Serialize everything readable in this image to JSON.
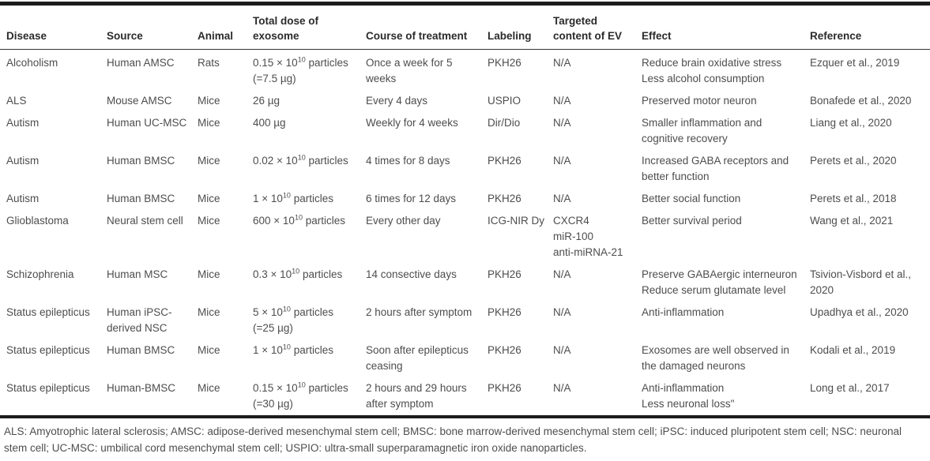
{
  "table": {
    "columns": [
      "Disease",
      "Source",
      "Animal",
      "Total dose of exosome",
      "Course of treatment",
      "Labeling",
      "Targeted content of EV",
      "Effect",
      "Reference"
    ],
    "rows": [
      {
        "disease": "Alcoholism",
        "source": "Human AMSC",
        "animal": "Rats",
        "dose": "0.15 × 10^{10} particles\n(=7.5 µg)",
        "course": "Once a week for 5 weeks",
        "labeling": "PKH26",
        "targeted": "N/A",
        "effect": "Reduce brain oxidative stress\nLess alcohol consumption",
        "reference": "Ezquer et al., 2019"
      },
      {
        "disease": "ALS",
        "source": "Mouse AMSC",
        "animal": "Mice",
        "dose": "26 µg",
        "course": "Every 4 days",
        "labeling": "USPIO",
        "targeted": "N/A",
        "effect": "Preserved motor neuron",
        "reference": "Bonafede et al., 2020"
      },
      {
        "disease": "Autism",
        "source": "Human UC-MSC",
        "animal": "Mice",
        "dose": "400 µg",
        "course": "Weekly for 4 weeks",
        "labeling": "Dir/Dio",
        "targeted": "N/A",
        "effect": "Smaller inflammation and cognitive recovery",
        "reference": "Liang et al., 2020"
      },
      {
        "disease": "Autism",
        "source": "Human BMSC",
        "animal": "Mice",
        "dose": "0.02 × 10^{10} particles",
        "course": "4 times for 8 days",
        "labeling": "PKH26",
        "targeted": "N/A",
        "effect": "Increased GABA receptors and better function",
        "reference": "Perets et al., 2020"
      },
      {
        "disease": "Autism",
        "source": "Human BMSC",
        "animal": "Mice",
        "dose": "1 × 10^{10} particles",
        "course": "6 times for 12 days",
        "labeling": "PKH26",
        "targeted": "N/A",
        "effect": "Better social function",
        "reference": "Perets et al., 2018"
      },
      {
        "disease": "Glioblastoma",
        "source": "Neural stem cell",
        "animal": "Mice",
        "dose": "600 × 10^{10} particles",
        "course": "Every other day",
        "labeling": "ICG-NIR Dy",
        "targeted": "CXCR4\nmiR-100\nanti-miRNA-21",
        "effect": "Better survival period",
        "reference": "Wang et al., 2021"
      },
      {
        "disease": "Schizophrenia",
        "source": "Human MSC",
        "animal": "Mice",
        "dose": "0.3 × 10^{10} particles",
        "course": "14 consective days",
        "labeling": "PKH26",
        "targeted": "N/A",
        "effect": "Preserve GABAergic interneuron\nReduce serum glutamate level",
        "reference": "Tsivion-Visbord et al., 2020"
      },
      {
        "disease": "Status epilepticus",
        "source": "Human iPSC-derived NSC",
        "animal": "Mice",
        "dose": "5 × 10^{10} particles\n(=25 µg)",
        "course": "2 hours after symptom",
        "labeling": "PKH26",
        "targeted": "N/A",
        "effect": "Anti-inflammation",
        "reference": "Upadhya et al., 2020"
      },
      {
        "disease": "Status epilepticus",
        "source": "Human BMSC",
        "animal": "Mice",
        "dose": "1 × 10^{10} particles",
        "course": "Soon after epilepticus ceasing",
        "labeling": "PKH26",
        "targeted": "N/A",
        "effect": "Exosomes are well observed in the damaged neurons",
        "reference": "Kodali et al., 2019"
      },
      {
        "disease": "Status epilepticus",
        "source": "Human-BMSC",
        "animal": "Mice",
        "dose": "0.15 × 10^{10} particles\n(=30 µg)",
        "course": "2 hours and 29 hours after symptom",
        "labeling": "PKH26",
        "targeted": "N/A",
        "effect": "Anti-inflammation\nLess neuronal loss\"",
        "reference": "Long et al., 2017"
      }
    ]
  },
  "footnote": "ALS: Amyotrophic lateral sclerosis; AMSC: adipose-derived mesenchymal stem cell; BMSC: bone marrow-derived mesenchymal stem cell; iPSC: induced pluripotent stem cell; NSC: neuronal stem cell; UC-MSC: umbilical cord mesenchymal stem cell; USPIO: ultra-small superparamagnetic iron oxide nanoparticles."
}
